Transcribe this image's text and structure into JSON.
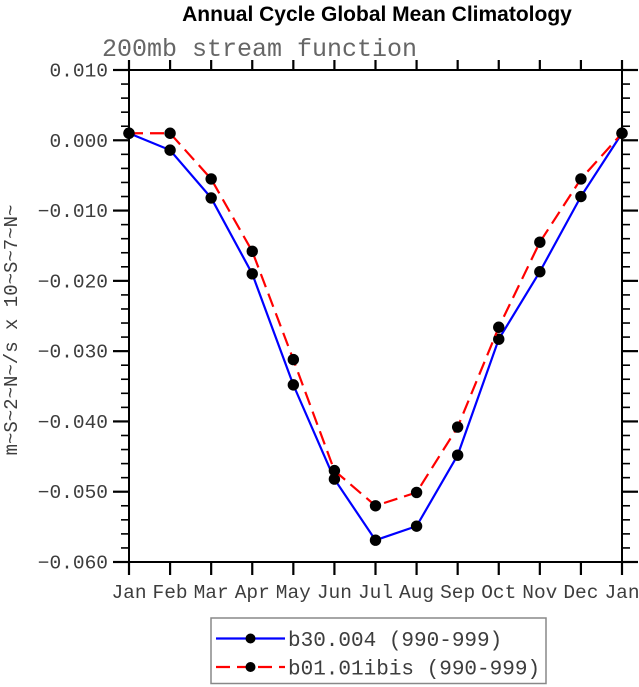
{
  "chart_data": {
    "type": "line",
    "title": "Annual Cycle Global Mean Climatology",
    "subtitle": "200mb stream function",
    "ylabel": "m~S~2~N~/s x 10~S~7~N~",
    "categories": [
      "Jan",
      "Feb",
      "Mar",
      "Apr",
      "May",
      "Jun",
      "Jul",
      "Aug",
      "Sep",
      "Oct",
      "Nov",
      "Dec",
      "Jan"
    ],
    "ylim": [
      -0.06,
      0.01
    ],
    "ytick_step": 0.01,
    "yminor_step": 0.002,
    "ytick_labels": [
      "0.010",
      "0.000",
      "−0.010",
      "−0.020",
      "−0.030",
      "−0.040",
      "−0.050",
      "−0.060"
    ],
    "grid": false,
    "legend_position": "bottom",
    "frame_color": "#000000",
    "series": [
      {
        "name": "b30.004 (990-999)",
        "color": "#0000ff",
        "style": "solid",
        "marker": "circle",
        "marker_color": "#000000",
        "values": [
          0.001,
          -0.0014,
          -0.0082,
          -0.019,
          -0.0348,
          -0.0482,
          -0.0569,
          -0.0549,
          -0.0448,
          -0.0283,
          -0.0187,
          -0.008,
          0.001
        ]
      },
      {
        "name": "b01.01ibis (990-999)",
        "color": "#ff0000",
        "style": "dashed",
        "marker": "circle",
        "marker_color": "#000000",
        "values": [
          0.001,
          0.001,
          -0.0055,
          -0.0158,
          -0.0312,
          -0.047,
          -0.052,
          -0.0501,
          -0.0408,
          -0.0266,
          -0.0145,
          -0.0055,
          0.001
        ]
      }
    ]
  }
}
